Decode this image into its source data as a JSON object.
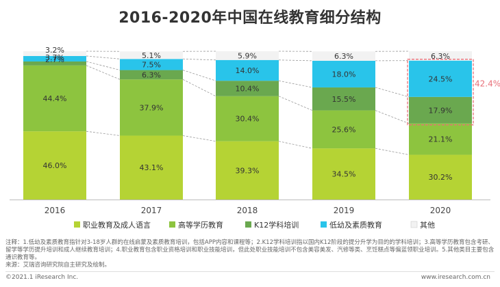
{
  "chart_data": {
    "type": "bar",
    "stacked": true,
    "percent_stacked": true,
    "title": "2016-2020年中国在线教育细分结构",
    "categories": [
      "2016",
      "2017",
      "2018",
      "2019",
      "2020"
    ],
    "series": [
      {
        "name": "职业教育及成人语言",
        "color": "#b5d334",
        "values": [
          46.0,
          43.1,
          39.3,
          34.5,
          30.2
        ]
      },
      {
        "name": "高等学历教育",
        "color": "#8dc43f",
        "values": [
          44.4,
          37.9,
          30.4,
          25.6,
          21.1
        ]
      },
      {
        "name": "K12学科培训",
        "color": "#6aa84f",
        "values": [
          2.7,
          6.3,
          10.4,
          15.5,
          17.9
        ]
      },
      {
        "name": "低幼及素质教育",
        "color": "#29c4ea",
        "values": [
          3.7,
          7.5,
          14.0,
          18.0,
          24.5
        ]
      },
      {
        "name": "其他",
        "color": "#f2f2f2",
        "values": [
          3.2,
          5.1,
          5.9,
          6.3,
          6.3
        ]
      }
    ],
    "labels": [
      [
        "46.0%",
        "44.4%",
        "2.7%",
        "3.7%",
        "3.2%"
      ],
      [
        "43.1%",
        "37.9%",
        "6.3%",
        "7.5%",
        "5.1%"
      ],
      [
        "39.3%",
        "30.4%",
        "10.4%",
        "14.0%",
        "5.9%"
      ],
      [
        "34.5%",
        "25.6%",
        "15.5%",
        "18.0%",
        "6.3%"
      ],
      [
        "30.2%",
        "21.1%",
        "17.9%",
        "24.5%",
        "6.3%"
      ]
    ],
    "highlight": {
      "category": "2020",
      "series": [
        "K12学科培训",
        "低幼及素质教育"
      ],
      "label": "42.4%",
      "color": "#e8707a"
    },
    "legend_position": "bottom",
    "ylim": [
      0,
      100
    ]
  },
  "notes": {
    "line1": "注释：1.低幼及素质教育指针对3-18岁人群的在线启蒙及素质教育培训，包括APP内容和课程等；2.K12学科培训指以国内K12阶段的提分升学为目的的学科培训；3.高等学历教育包含考研、留学等学历提升培训和成人继续教育培训；4.职业教育包含职业资格培训和职业技能培训，但此处职业技能培训不包含美容美发、汽修等类、烹饪糕点等偏蓝领职业培训。5.其他类目主要包含通识教育等。",
    "line2": "来源：艾瑞咨询研究院自主研究及绘制。"
  },
  "footer": {
    "copyright": "©2021.1 iResearch Inc.",
    "website": "www.iresearch.com.cn"
  }
}
